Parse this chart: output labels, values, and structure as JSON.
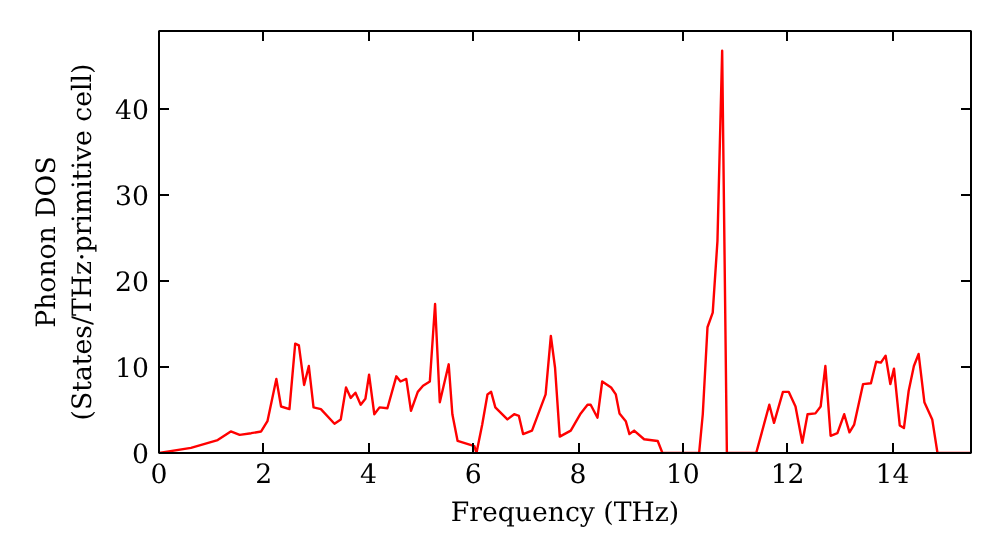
{
  "chart_data": {
    "type": "line",
    "xlabel": "Frequency (THz)",
    "ylabel": "Phonon DOS\n(States/THz·primitive cell)",
    "xlim": [
      0,
      15.5
    ],
    "ylim": [
      0,
      49
    ],
    "xticks": [
      0,
      2,
      4,
      6,
      8,
      10,
      12,
      14
    ],
    "yticks": [
      0,
      10,
      20,
      30,
      40
    ],
    "grid": false,
    "x": [
      0,
      0.61,
      1.12,
      1.37,
      1.54,
      1.76,
      1.95,
      2.07,
      2.24,
      2.33,
      2.49,
      2.6,
      2.67,
      2.77,
      2.86,
      2.95,
      3.09,
      3.35,
      3.47,
      3.57,
      3.66,
      3.75,
      3.85,
      3.94,
      4.01,
      4.11,
      4.21,
      4.36,
      4.53,
      4.61,
      4.72,
      4.81,
      4.94,
      5.04,
      5.17,
      5.27,
      5.36,
      5.53,
      5.6,
      5.7,
      6.02,
      6.06,
      6.17,
      6.27,
      6.34,
      6.42,
      6.65,
      6.78,
      6.87,
      6.95,
      7.12,
      7.38,
      7.48,
      7.56,
      7.65,
      7.86,
      8.05,
      8.18,
      8.24,
      8.37,
      8.46,
      8.63,
      8.72,
      8.79,
      8.91,
      8.98,
      9.07,
      9.26,
      9.52,
      9.61,
      10.31,
      10.38,
      10.47,
      10.57,
      10.66,
      10.75,
      10.84,
      11.4,
      11.65,
      11.74,
      11.91,
      12.02,
      12.15,
      12.28,
      12.38,
      12.53,
      12.63,
      12.72,
      12.82,
      12.95,
      13.08,
      13.18,
      13.27,
      13.44,
      13.59,
      13.69,
      13.78,
      13.87,
      13.96,
      14.03,
      14.14,
      14.22,
      14.31,
      14.41,
      14.5,
      14.61,
      14.76,
      14.86,
      15.5
    ],
    "series": [
      {
        "color": "#ff0000",
        "values": [
          0,
          0.6,
          1.5,
          2.5,
          2.1,
          2.3,
          2.5,
          3.7,
          8.6,
          5.4,
          5.1,
          12.7,
          12.5,
          7.9,
          10.1,
          5.3,
          5.1,
          3.4,
          3.9,
          7.6,
          6.4,
          7.0,
          5.6,
          6.3,
          9.1,
          4.5,
          5.3,
          5.2,
          8.9,
          8.3,
          8.6,
          4.9,
          7.1,
          7.8,
          8.3,
          17.3,
          5.9,
          10.3,
          4.5,
          1.4,
          0.8,
          0,
          3.3,
          6.8,
          7.1,
          5.3,
          3.9,
          4.5,
          4.3,
          2.2,
          2.6,
          6.8,
          13.6,
          9.9,
          1.9,
          2.6,
          4.6,
          5.6,
          5.6,
          4.1,
          8.3,
          7.6,
          6.8,
          4.6,
          3.7,
          2.2,
          2.6,
          1.6,
          1.4,
          0,
          0,
          4.5,
          14.6,
          16.3,
          24.6,
          46.7,
          0,
          0,
          5.6,
          3.5,
          7.1,
          7.1,
          5.4,
          1.2,
          4.5,
          4.6,
          5.4,
          10.1,
          2.0,
          2.3,
          4.5,
          2.4,
          3.3,
          8.0,
          8.1,
          10.6,
          10.5,
          11.3,
          8.0,
          9.8,
          3.2,
          2.9,
          7.2,
          10.1,
          11.5,
          5.9,
          3.9,
          0,
          0
        ]
      }
    ]
  }
}
